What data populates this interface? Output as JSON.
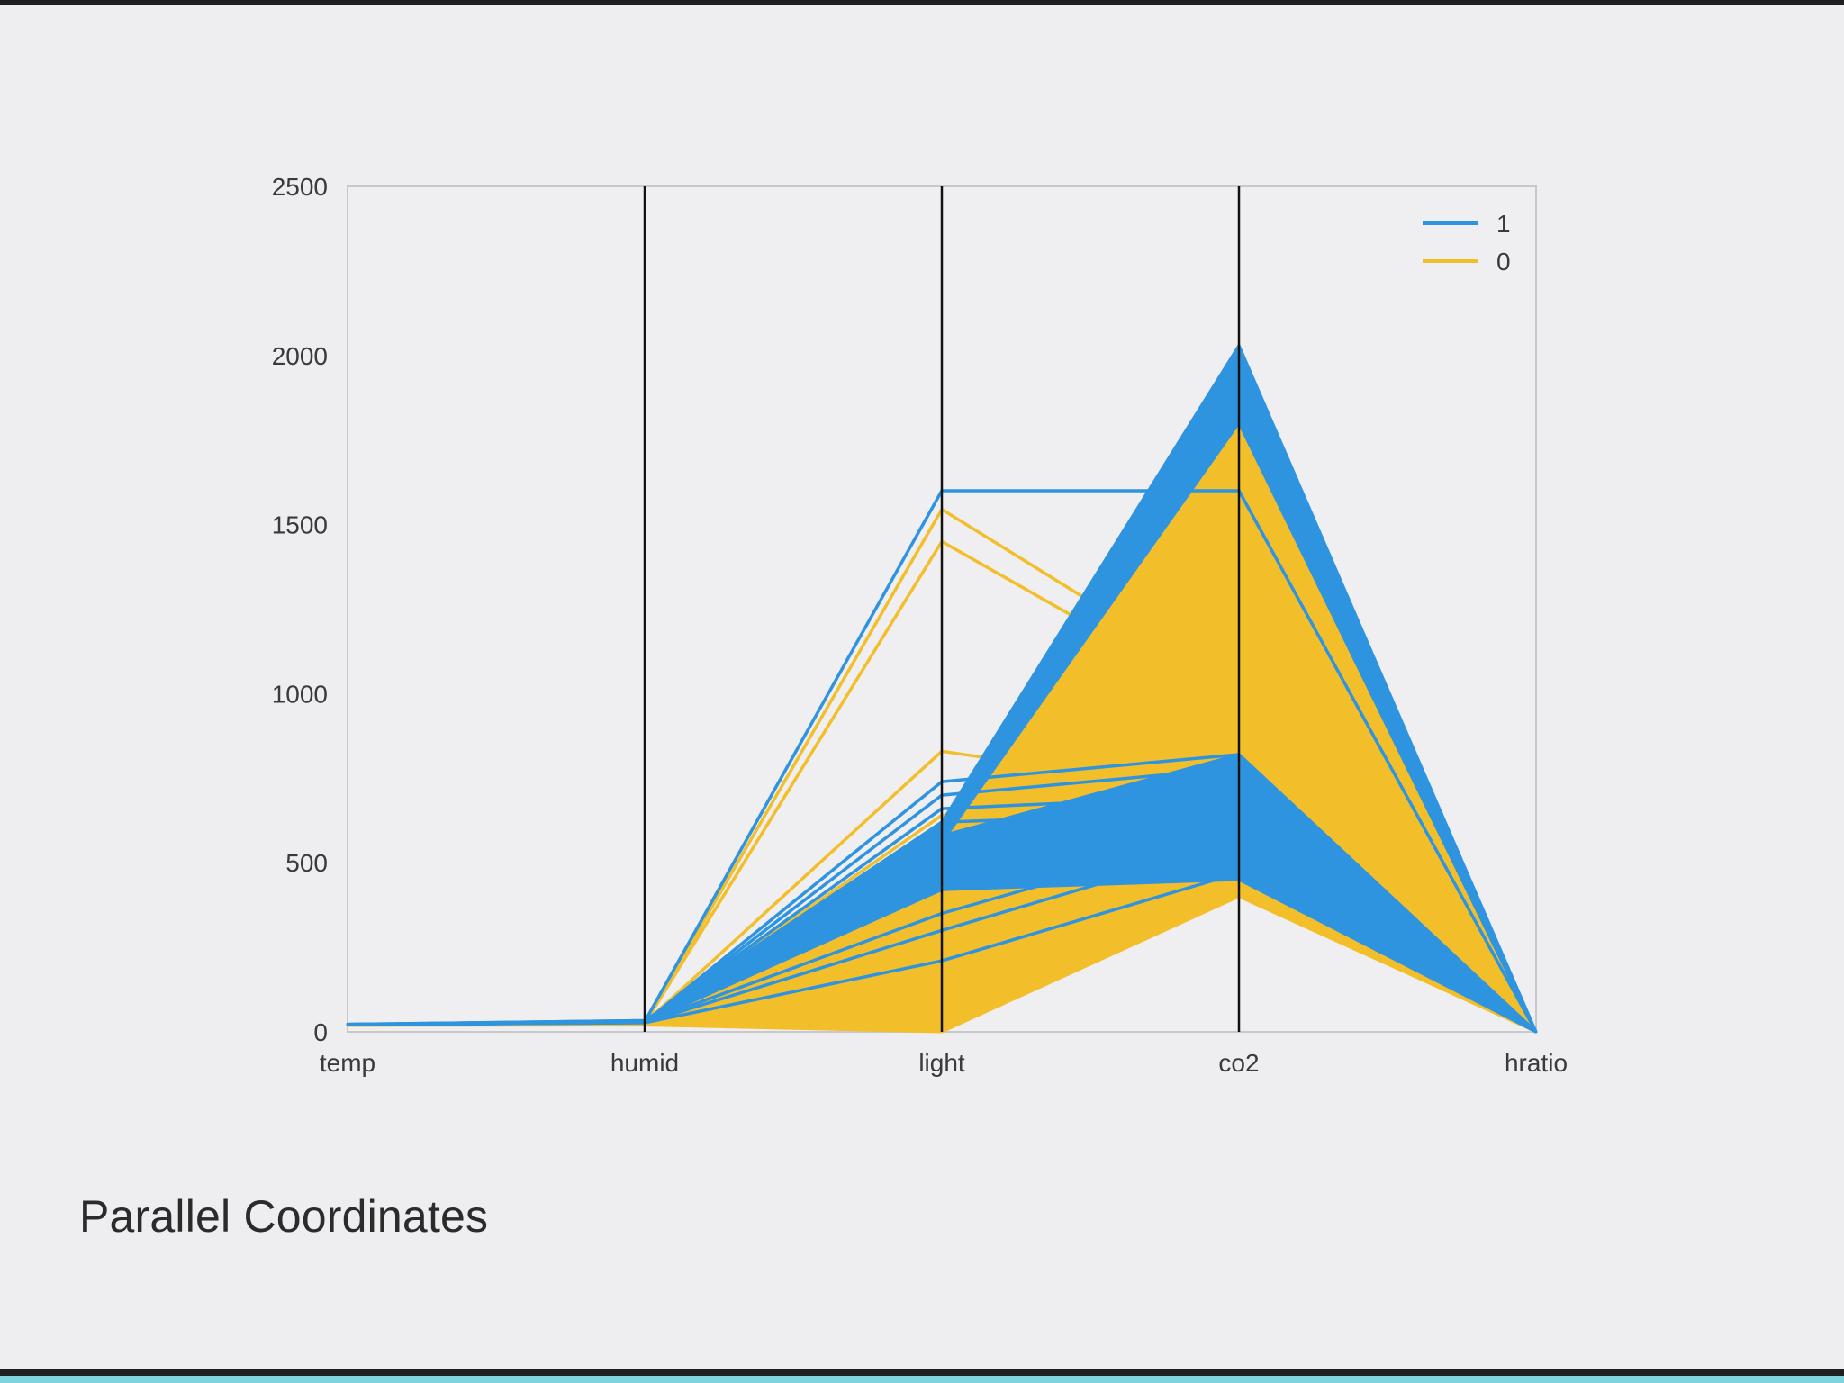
{
  "caption": "Parallel Coordinates",
  "chart_data": {
    "type": "parallel_coordinates",
    "dimensions": [
      "temp",
      "humid",
      "light",
      "co2",
      "hratio"
    ],
    "ylim": [
      0,
      2500
    ],
    "yticks": [
      0,
      500,
      1000,
      1500,
      2000,
      2500
    ],
    "grid": false,
    "legend": {
      "position": "top-right",
      "entries": [
        "1",
        "0"
      ]
    },
    "series": [
      {
        "name": "0",
        "color": "#f2bf2b",
        "bands": [
          {
            "low": [
              19,
              20,
              0,
              400,
              0.003
            ],
            "high": [
              21,
              30,
              580,
              1800,
              0.006
            ]
          }
        ],
        "lines": [
          [
            20,
            25,
            1545,
            1000,
            0.004
          ],
          [
            20,
            24,
            1450,
            950,
            0.004
          ],
          [
            20,
            26,
            830,
            700,
            0.004
          ],
          [
            20,
            27,
            640,
            560,
            0.004
          ]
        ]
      },
      {
        "name": "1",
        "color": "#2f94e0",
        "bands": [
          {
            "low": [
              21,
              30,
              560,
              1800,
              0.005
            ],
            "high": [
              23,
              34,
              620,
              2030,
              0.007
            ]
          },
          {
            "low": [
              21,
              27,
              420,
              450,
              0.004
            ],
            "high": [
              23,
              34,
              580,
              820,
              0.006
            ]
          }
        ],
        "lines": [
          [
            21,
            28,
            740,
            820,
            0.004
          ],
          [
            21,
            28,
            700,
            780,
            0.004
          ],
          [
            21,
            29,
            660,
            700,
            0.004
          ],
          [
            22,
            30,
            620,
            650,
            0.004
          ],
          [
            21,
            28,
            350,
            600,
            0.004
          ],
          [
            21,
            27,
            300,
            560,
            0.004
          ],
          [
            21,
            27,
            210,
            470,
            0.004
          ],
          [
            22,
            30,
            1600,
            1600,
            0.005
          ]
        ]
      }
    ]
  }
}
